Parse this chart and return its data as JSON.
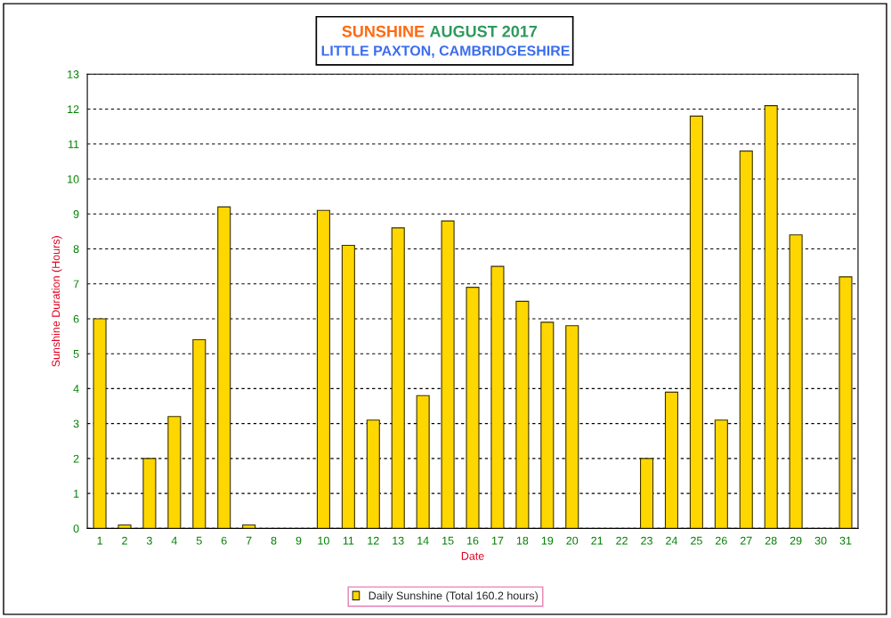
{
  "chart_data": {
    "type": "bar",
    "title": "SUNSHINE   AUGUST 2017",
    "subtitle": "LITTLE PAXTON, CAMBRIDGESHIRE",
    "xlabel": "Date",
    "ylabel": "Sunshine Duration (Hours)",
    "categories": [
      "1",
      "2",
      "3",
      "4",
      "5",
      "6",
      "7",
      "8",
      "9",
      "10",
      "11",
      "12",
      "13",
      "14",
      "15",
      "16",
      "17",
      "18",
      "19",
      "20",
      "21",
      "22",
      "23",
      "24",
      "25",
      "26",
      "27",
      "28",
      "29",
      "30",
      "31"
    ],
    "series": [
      {
        "name": "Daily Sunshine (Total 160.2 hours)",
        "color": "#ffd700",
        "values": [
          6.0,
          0.1,
          2.0,
          3.2,
          5.4,
          9.2,
          0.1,
          0,
          0,
          9.1,
          8.1,
          3.1,
          8.6,
          3.8,
          8.8,
          6.9,
          7.5,
          6.5,
          5.9,
          5.8,
          0,
          0,
          2.0,
          3.9,
          11.8,
          3.1,
          10.8,
          12.1,
          8.4,
          0,
          7.2
        ]
      }
    ],
    "ylim": [
      0,
      13
    ],
    "yticks": [
      0,
      1,
      2,
      3,
      4,
      5,
      6,
      7,
      8,
      9,
      10,
      11,
      12,
      13
    ],
    "grid": "y",
    "legend": "bottom"
  }
}
